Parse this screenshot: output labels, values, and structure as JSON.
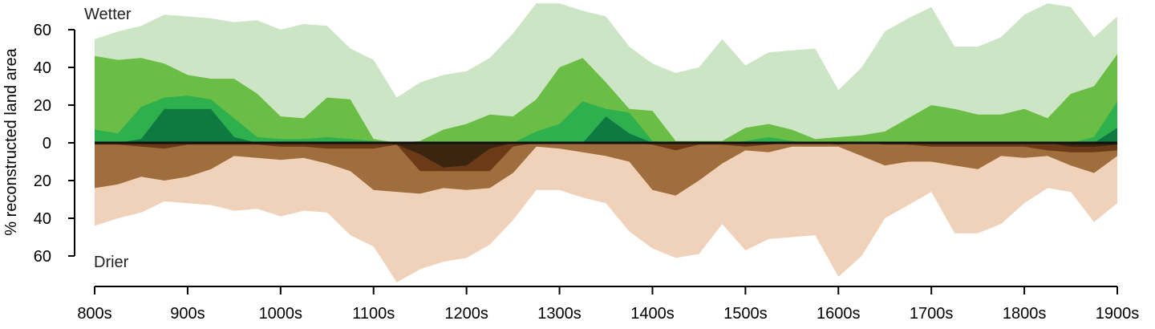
{
  "chart_data": {
    "type": "area",
    "ylabel": "% reconstructed land area",
    "annotations": {
      "top": "Wetter",
      "bottom": "Drier"
    },
    "xlim": [
      800,
      1900
    ],
    "ylim": [
      -74,
      74
    ],
    "x_ticks": [
      800,
      900,
      1000,
      1100,
      1200,
      1300,
      1400,
      1500,
      1600,
      1700,
      1800,
      1900
    ],
    "x_tick_labels": [
      "800s",
      "900s",
      "1000s",
      "1100s",
      "1200s",
      "1300s",
      "1400s",
      "1500s",
      "1600s",
      "1700s",
      "1800s",
      "1900s"
    ],
    "y_ticks": [
      -60,
      -40,
      -20,
      0,
      20,
      40,
      60
    ],
    "y_tick_labels": [
      "60",
      "40",
      "20",
      "0",
      "20",
      "40",
      "60"
    ],
    "x": [
      800,
      825,
      850,
      875,
      900,
      925,
      950,
      975,
      1000,
      1025,
      1050,
      1075,
      1100,
      1125,
      1150,
      1175,
      1200,
      1225,
      1250,
      1275,
      1300,
      1325,
      1350,
      1375,
      1400,
      1425,
      1450,
      1475,
      1500,
      1525,
      1550,
      1575,
      1600,
      1625,
      1650,
      1675,
      1700,
      1725,
      1750,
      1775,
      1800,
      1825,
      1850,
      1875,
      1900
    ],
    "series": [
      {
        "color": "#cce5c4",
        "direction": "wetter",
        "values": [
          55,
          59,
          62,
          68,
          67,
          66,
          64,
          65,
          60,
          63,
          62,
          50,
          44,
          24,
          32,
          36,
          38,
          45,
          58,
          74,
          74,
          70,
          67,
          51,
          42,
          37,
          40,
          55,
          41,
          48,
          49,
          50,
          28,
          40,
          59,
          66,
          72,
          51,
          51,
          56,
          68,
          74,
          72,
          56,
          67
        ]
      },
      {
        "color": "#6abd45",
        "direction": "wetter",
        "values": [
          46,
          44,
          45,
          42,
          36,
          34,
          34,
          26,
          14,
          13,
          24,
          23,
          2,
          0,
          1,
          7,
          10,
          15,
          14,
          23,
          40,
          45,
          32,
          18,
          17,
          1,
          1,
          1,
          8,
          10,
          7,
          2,
          3,
          4,
          6,
          13,
          20,
          18,
          15,
          15,
          18,
          13,
          26,
          30,
          47
        ]
      },
      {
        "color": "#2eb04f",
        "direction": "wetter",
        "values": [
          7,
          5,
          19,
          24,
          25,
          23,
          13,
          3,
          2,
          2,
          3,
          2,
          1,
          0,
          0,
          0,
          0,
          0,
          0,
          6,
          10,
          22,
          18,
          16,
          1,
          0,
          0,
          0,
          1,
          3,
          1,
          0,
          0,
          0,
          0,
          0,
          0,
          0,
          0,
          0,
          0,
          0,
          0,
          3,
          22
        ]
      },
      {
        "color": "#0f7a3f",
        "direction": "wetter",
        "values": [
          0,
          0,
          2,
          18,
          18,
          18,
          3,
          0,
          0,
          0,
          0,
          0,
          0,
          0,
          0,
          0,
          0,
          0,
          0,
          0,
          0,
          0,
          14,
          5,
          0,
          0,
          0,
          0,
          0,
          0,
          0,
          0,
          0,
          0,
          0,
          0,
          0,
          0,
          0,
          0,
          0,
          0,
          0,
          0,
          8
        ]
      },
      {
        "color": "#f0d2bb",
        "direction": "drier",
        "values": [
          44,
          40,
          37,
          31,
          32,
          33,
          36,
          35,
          39,
          36,
          37,
          49,
          55,
          74,
          67,
          63,
          61,
          54,
          41,
          25,
          25,
          29,
          32,
          47,
          56,
          61,
          59,
          43,
          57,
          51,
          50,
          49,
          71,
          60,
          40,
          33,
          26,
          48,
          48,
          43,
          32,
          24,
          26,
          42,
          32
        ]
      },
      {
        "color": "#a06e3c",
        "direction": "drier",
        "values": [
          24,
          22,
          18,
          20,
          18,
          14,
          7,
          8,
          9,
          8,
          11,
          15,
          25,
          26,
          27,
          24,
          25,
          24,
          16,
          2,
          3,
          5,
          7,
          10,
          25,
          28,
          20,
          11,
          4,
          5,
          2,
          2,
          2,
          7,
          12,
          10,
          10,
          12,
          14,
          7,
          8,
          7,
          12,
          16,
          7
        ]
      },
      {
        "color": "#6b3a16",
        "direction": "drier",
        "values": [
          1,
          1,
          2,
          3,
          1,
          1,
          1,
          1,
          2,
          2,
          3,
          3,
          3,
          1,
          15,
          15,
          15,
          15,
          2,
          0,
          0,
          0,
          0,
          0,
          1,
          4,
          1,
          1,
          2,
          1,
          0,
          0,
          1,
          0,
          1,
          1,
          2,
          2,
          2,
          2,
          2,
          4,
          5,
          5,
          4
        ]
      },
      {
        "color": "#3b2410",
        "direction": "drier",
        "values": [
          0,
          0,
          0,
          0,
          0,
          0,
          0,
          0,
          0,
          0,
          0,
          0,
          0,
          1,
          6,
          13,
          12,
          3,
          0,
          0,
          0,
          0,
          0,
          0,
          0,
          0,
          0,
          0,
          0,
          0,
          0,
          0,
          0,
          0,
          0,
          0,
          0,
          0,
          0,
          0,
          0,
          0,
          2,
          2,
          1
        ]
      }
    ]
  }
}
